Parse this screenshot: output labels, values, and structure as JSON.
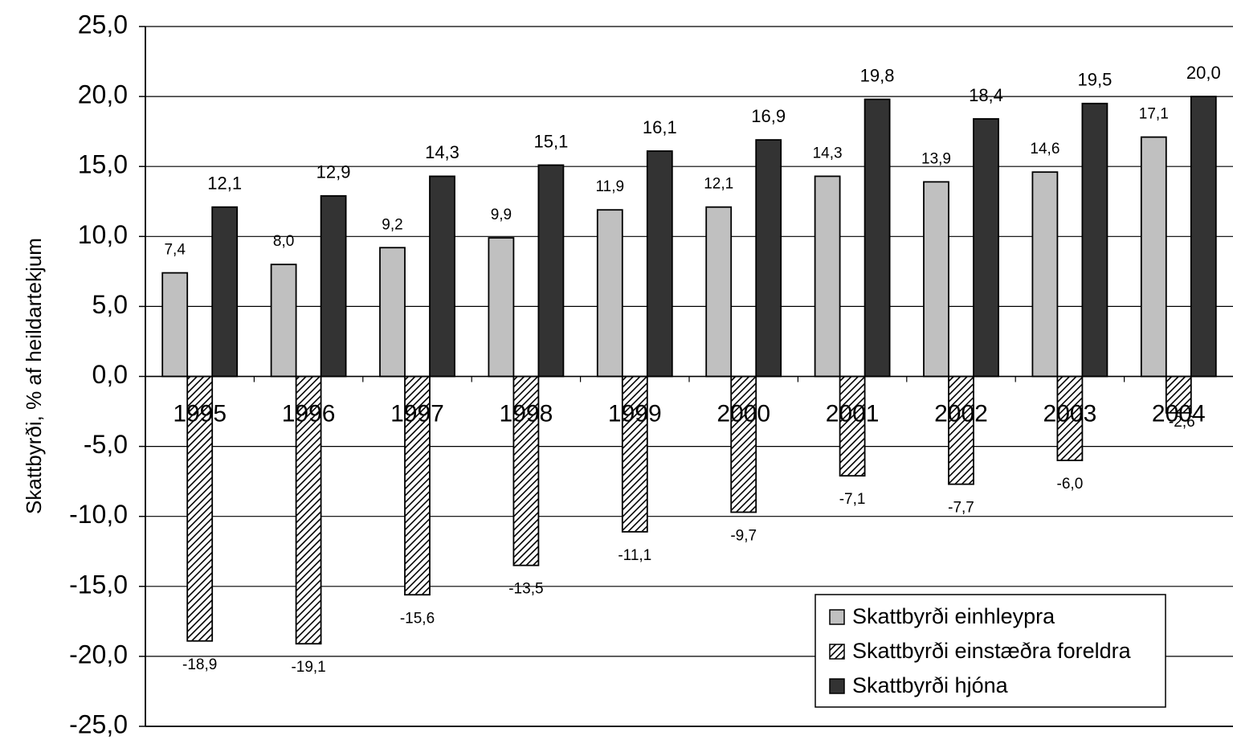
{
  "chart_data": {
    "type": "bar",
    "ylabel": "Skattbyrði, % af heildartekjum",
    "xlabel": "",
    "title": "",
    "ylim": [
      -25,
      25
    ],
    "y_ticks": [
      25,
      20,
      15,
      10,
      5,
      0,
      -5,
      -10,
      -15,
      -20,
      -25
    ],
    "y_tick_labels": [
      "25,0",
      "20,0",
      "15,0",
      "10,0",
      "5,0",
      "0,0",
      "-5,0",
      "-10,0",
      "-15,0",
      "-20,0",
      "-25,0"
    ],
    "grid": true,
    "legend_position": "bottom-right",
    "categories": [
      "1995",
      "1996",
      "1997",
      "1998",
      "1999",
      "2000",
      "2001",
      "2002",
      "2003",
      "2004"
    ],
    "series": [
      {
        "name": "Skattbyrði einhleypra",
        "color": "#c0c0c0",
        "pattern": "solid",
        "values": [
          7.4,
          8.0,
          9.2,
          9.9,
          11.9,
          12.1,
          14.3,
          13.9,
          14.6,
          17.1
        ],
        "labels": [
          "7,4",
          "8,0",
          "9,2",
          "9,9",
          "11,9",
          "12,1",
          "14,3",
          "13,9",
          "14,6",
          "17,1"
        ]
      },
      {
        "name": "Skattbyrði einstæðra foreldra",
        "color": "#808080",
        "pattern": "hatched",
        "values": [
          -18.9,
          -19.1,
          -15.6,
          -13.5,
          -11.1,
          -9.7,
          -7.1,
          -7.7,
          -6.0,
          -2.6
        ],
        "labels": [
          "-18,9",
          "-19,1",
          "-15,6",
          "-13,5",
          "-11,1",
          "-9,7",
          "-7,1",
          "-7,7",
          "-6,0",
          "-2,6"
        ]
      },
      {
        "name": "Skattbyrði hjóna",
        "color": "#333333",
        "pattern": "solid",
        "values": [
          12.1,
          12.9,
          14.3,
          15.1,
          16.1,
          16.9,
          19.8,
          18.4,
          19.5,
          20.0
        ],
        "labels": [
          "12,1",
          "12,9",
          "14,3",
          "15,1",
          "16,1",
          "16,9",
          "19,8",
          "18,4",
          "19,5",
          "20,0"
        ]
      }
    ]
  }
}
